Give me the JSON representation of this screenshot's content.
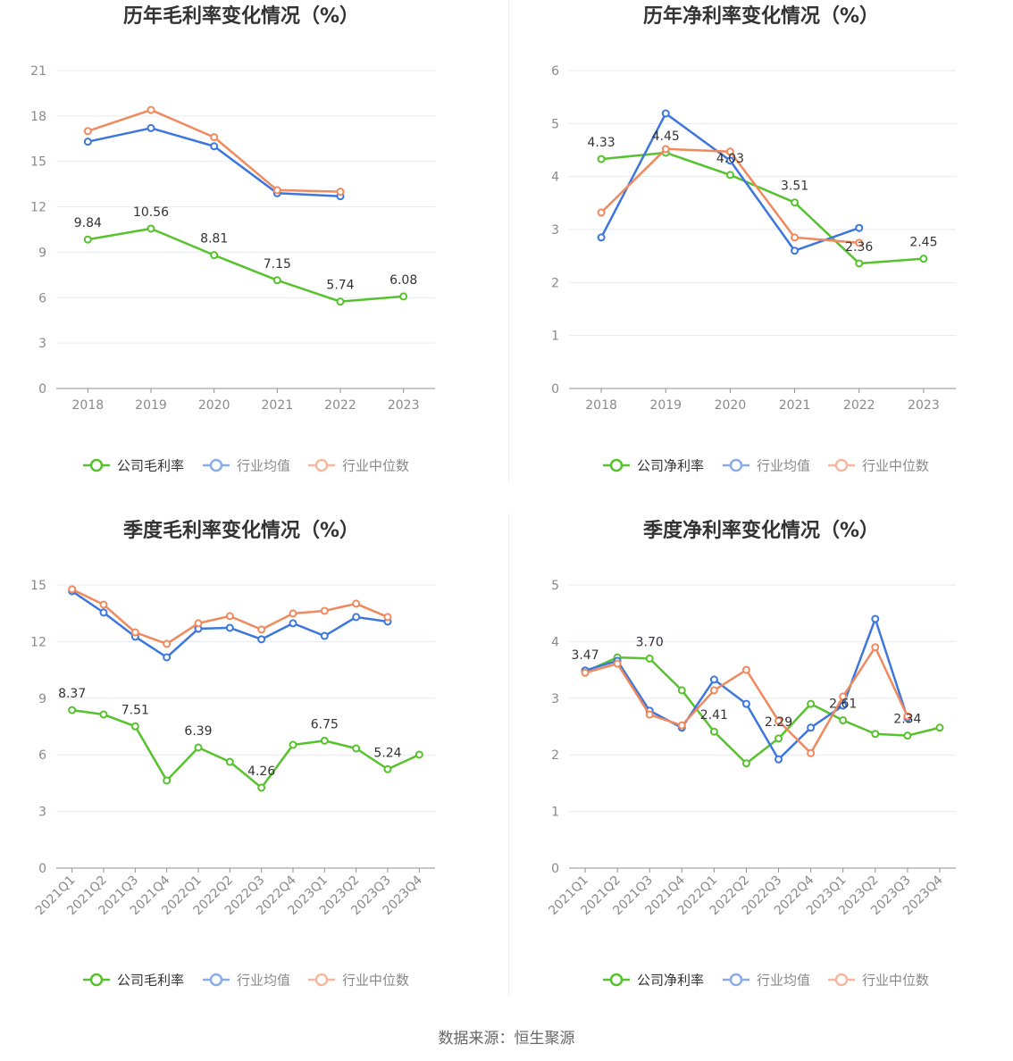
{
  "chart_data": [
    {
      "type": "line",
      "title": "历年毛利率变化情况（%）",
      "categories": [
        "2018",
        "2019",
        "2020",
        "2021",
        "2022",
        "2023"
      ],
      "ylim": [
        0,
        21
      ],
      "yticks": [
        0,
        3,
        6,
        9,
        12,
        15,
        18,
        21
      ],
      "grid": true,
      "legend": "bottom",
      "series": [
        {
          "name": "公司毛利率",
          "color": "#56c22d",
          "values": [
            9.84,
            10.56,
            8.81,
            7.15,
            5.74,
            6.08
          ],
          "data_labels": [
            "9.84",
            "10.56",
            "8.81",
            "7.15",
            "5.74",
            "6.08"
          ]
        },
        {
          "name": "行业均值",
          "color": "#3d77dd",
          "values": [
            16.3,
            17.2,
            16.0,
            12.9,
            12.7,
            null
          ]
        },
        {
          "name": "行业中位数",
          "color": "#f0895e",
          "values": [
            17.0,
            18.4,
            16.6,
            13.1,
            13.0,
            null
          ]
        }
      ]
    },
    {
      "type": "line",
      "title": "历年净利率变化情况（%）",
      "categories": [
        "2018",
        "2019",
        "2020",
        "2021",
        "2022",
        "2023"
      ],
      "ylim": [
        0,
        6
      ],
      "yticks": [
        0,
        1,
        2,
        3,
        4,
        5,
        6
      ],
      "grid": true,
      "legend": "bottom",
      "series": [
        {
          "name": "公司净利率",
          "color": "#56c22d",
          "values": [
            4.33,
            4.45,
            4.03,
            3.51,
            2.36,
            2.45
          ],
          "data_labels": [
            "4.33",
            "4.45",
            "4.03",
            "3.51",
            "2.36",
            "2.45"
          ]
        },
        {
          "name": "行业均值",
          "color": "#3d77dd",
          "values": [
            2.85,
            5.19,
            4.3,
            2.6,
            3.03,
            null
          ]
        },
        {
          "name": "行业中位数",
          "color": "#f0895e",
          "values": [
            3.32,
            4.52,
            4.47,
            2.85,
            2.75,
            null
          ]
        }
      ]
    },
    {
      "type": "line",
      "title": "季度毛利率变化情况（%）",
      "categories": [
        "2021Q1",
        "2021Q2",
        "2021Q3",
        "2021Q4",
        "2022Q1",
        "2022Q2",
        "2022Q3",
        "2022Q4",
        "2023Q1",
        "2023Q2",
        "2023Q3",
        "2023Q4"
      ],
      "ylim": [
        0,
        15
      ],
      "yticks": [
        0,
        3,
        6,
        9,
        12,
        15
      ],
      "grid": true,
      "legend": "bottom",
      "series": [
        {
          "name": "公司毛利率",
          "color": "#56c22d",
          "values": [
            8.37,
            8.14,
            7.51,
            4.64,
            6.39,
            5.63,
            4.26,
            6.53,
            6.75,
            6.34,
            5.24,
            6.01
          ],
          "data_labels": [
            "8.37",
            null,
            "7.51",
            null,
            "6.39",
            null,
            "4.26",
            null,
            "6.75",
            null,
            "5.24",
            null
          ]
        },
        {
          "name": "行业均值",
          "color": "#3d77dd",
          "values": [
            14.67,
            13.54,
            12.26,
            11.17,
            12.68,
            12.73,
            12.12,
            12.97,
            12.3,
            13.3,
            13.06,
            null
          ]
        },
        {
          "name": "行业中位数",
          "color": "#f0895e",
          "values": [
            14.77,
            13.96,
            12.49,
            11.88,
            12.97,
            13.35,
            12.64,
            13.49,
            13.63,
            14.01,
            13.3,
            null
          ]
        }
      ]
    },
    {
      "type": "line",
      "title": "季度净利率变化情况（%）",
      "categories": [
        "2021Q1",
        "2021Q2",
        "2021Q3",
        "2021Q4",
        "2022Q1",
        "2022Q2",
        "2022Q3",
        "2022Q4",
        "2023Q1",
        "2023Q2",
        "2023Q3",
        "2023Q4"
      ],
      "ylim": [
        0,
        5
      ],
      "yticks": [
        0,
        1,
        2,
        3,
        4,
        5
      ],
      "grid": true,
      "legend": "bottom",
      "series": [
        {
          "name": "公司净利率",
          "color": "#56c22d",
          "values": [
            3.47,
            3.72,
            3.7,
            3.14,
            2.41,
            1.85,
            2.29,
            2.9,
            2.61,
            2.37,
            2.34,
            2.48
          ],
          "data_labels": [
            "3.47",
            null,
            "3.70",
            null,
            "2.41",
            null,
            "2.29",
            null,
            "2.61",
            null,
            "2.34",
            null
          ]
        },
        {
          "name": "行业均值",
          "color": "#3d77dd",
          "values": [
            3.49,
            3.66,
            2.78,
            2.48,
            3.33,
            2.9,
            1.92,
            2.48,
            2.87,
            4.4,
            2.65,
            null
          ]
        },
        {
          "name": "行业中位数",
          "color": "#f0895e",
          "values": [
            3.45,
            3.61,
            2.71,
            2.52,
            3.14,
            3.5,
            2.6,
            2.03,
            3.03,
            3.9,
            2.68,
            null
          ]
        }
      ]
    }
  ],
  "footer": {
    "source": "数据来源：恒生聚源"
  }
}
